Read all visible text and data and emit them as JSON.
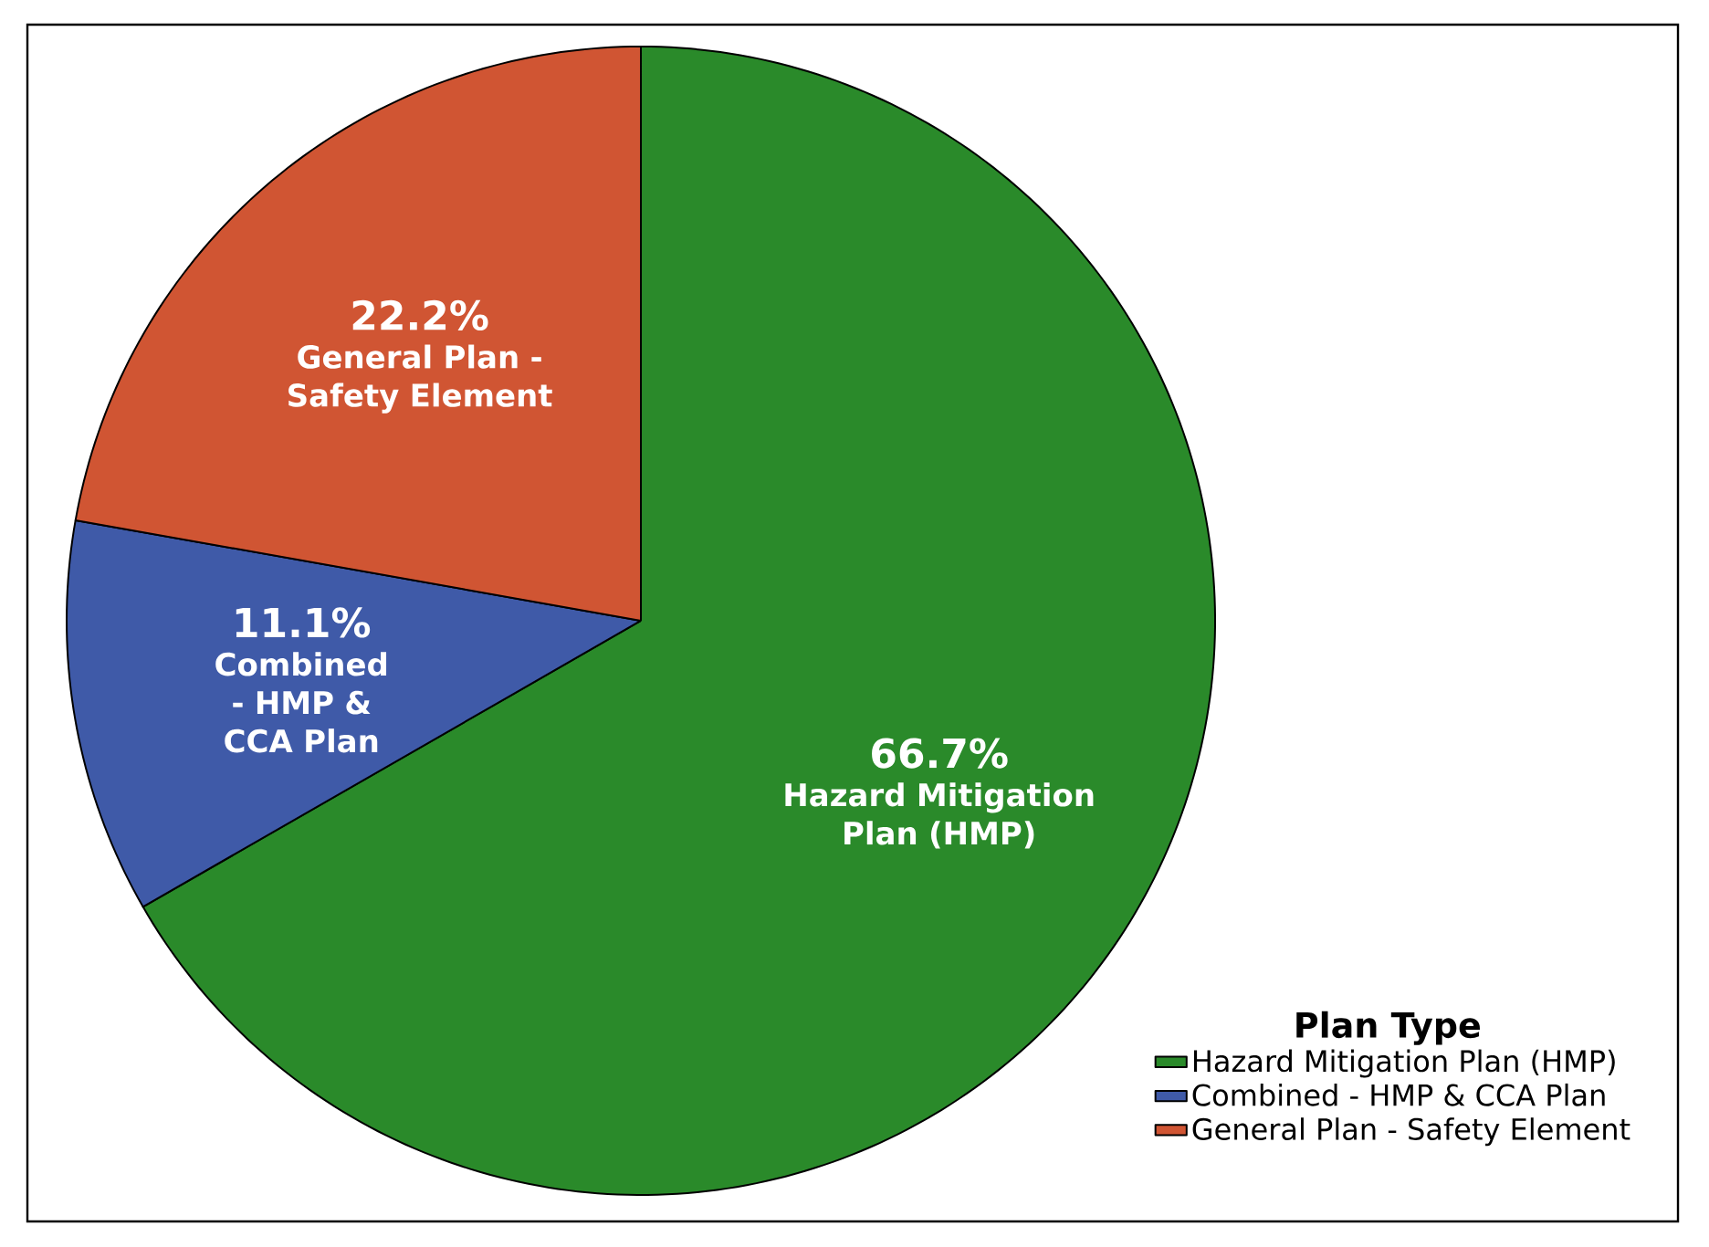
{
  "chart_data": {
    "type": "pie",
    "categories": [
      "Hazard Mitigation Plan (HMP)",
      "Combined - HMP & CCA Plan",
      "General Plan - Safety Element"
    ],
    "values": [
      66.7,
      11.1,
      22.2
    ],
    "value_labels": [
      "66.7%",
      "11.1%",
      "22.2%"
    ],
    "colors": [
      "#2a8a2a",
      "#3f5aa8",
      "#d05533"
    ],
    "legend_title": "Plan Type",
    "legend": "bottom right"
  }
}
